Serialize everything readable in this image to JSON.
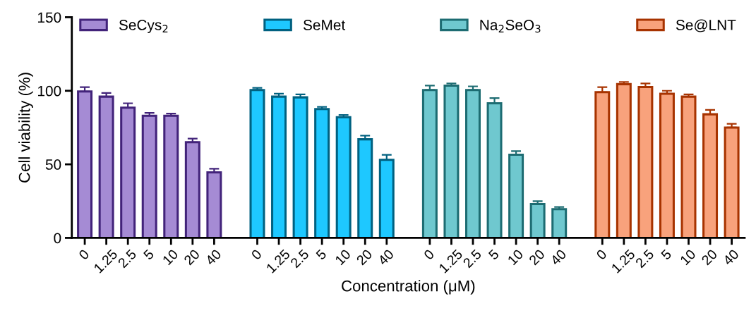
{
  "chart_data": {
    "type": "bar",
    "xlabel": "Concentration (μM)",
    "ylabel": "Cell viability (%)",
    "categories": [
      "0",
      "1.25",
      "2.5",
      "5",
      "10",
      "20",
      "40",
      null,
      "0",
      "1.25",
      "2.5",
      "5",
      "10",
      "20",
      "40",
      null,
      "0",
      "1.25",
      "2.5",
      "5",
      "10",
      "20",
      "40",
      null,
      "0",
      "1.25",
      "2.5",
      "5",
      "10",
      "20",
      "40"
    ],
    "series": [
      {
        "name": "SeCys$_{2}$",
        "color": "#a58bd4",
        "values": [
          99.5,
          96,
          88.5,
          83,
          83,
          65,
          44.5,
          null,
          null,
          null,
          null,
          null,
          null,
          null,
          null,
          null,
          null,
          null,
          null,
          null,
          null,
          null,
          null,
          null,
          null,
          null,
          null,
          null,
          null,
          null,
          null
        ],
        "errors": [
          3,
          2.5,
          3,
          2,
          1.5,
          2.5,
          2.5,
          null,
          null,
          null,
          null,
          null,
          null,
          null,
          null,
          null,
          null,
          null,
          null,
          null,
          null,
          null,
          null,
          null,
          null,
          null,
          null,
          null,
          null,
          null,
          null
        ]
      },
      {
        "name": "SeMet",
        "color": "#1ec8ff",
        "values": [
          null,
          null,
          null,
          null,
          null,
          null,
          null,
          null,
          100.5,
          96,
          95.5,
          87.5,
          82,
          67,
          53,
          null,
          null,
          null,
          null,
          null,
          null,
          null,
          null,
          null,
          null,
          null,
          null,
          null,
          null,
          null,
          null
        ],
        "errors": [
          null,
          null,
          null,
          null,
          null,
          null,
          null,
          null,
          1.5,
          2,
          2,
          1.5,
          1.5,
          2.5,
          3.5,
          null,
          null,
          null,
          null,
          null,
          null,
          null,
          null,
          null,
          null,
          null,
          null,
          null,
          null,
          null,
          null
        ]
      },
      {
        "name": "Na$_{2}$SeO$_{3}$",
        "color": "#6fc8cf",
        "values": [
          null,
          null,
          null,
          null,
          null,
          null,
          null,
          null,
          null,
          null,
          null,
          null,
          null,
          null,
          null,
          null,
          100.5,
          103.5,
          100.5,
          91.5,
          56.5,
          23,
          19.5,
          null,
          null,
          null,
          null,
          null,
          null,
          null,
          null
        ],
        "errors": [
          null,
          null,
          null,
          null,
          null,
          null,
          null,
          null,
          null,
          null,
          null,
          null,
          null,
          null,
          null,
          null,
          3,
          1.5,
          2.5,
          3.5,
          2.5,
          2,
          1.5,
          null,
          null,
          null,
          null,
          null,
          null,
          null,
          null
        ]
      },
      {
        "name": "Se@LNT",
        "color": "#f8a27c",
        "values": [
          null,
          null,
          null,
          null,
          null,
          null,
          null,
          null,
          null,
          null,
          null,
          null,
          null,
          null,
          null,
          null,
          null,
          null,
          null,
          null,
          null,
          null,
          null,
          null,
          99,
          104.5,
          102.5,
          98,
          96,
          84,
          75
        ],
        "errors": [
          null,
          null,
          null,
          null,
          null,
          null,
          null,
          null,
          null,
          null,
          null,
          null,
          null,
          null,
          null,
          null,
          null,
          null,
          null,
          null,
          null,
          null,
          null,
          null,
          3.5,
          1.5,
          2.5,
          2,
          1.5,
          3,
          2.5
        ]
      }
    ],
    "ylim": [
      0,
      150
    ],
    "yticks": [
      0,
      50,
      100,
      150
    ],
    "grid": false,
    "legend": "top"
  }
}
